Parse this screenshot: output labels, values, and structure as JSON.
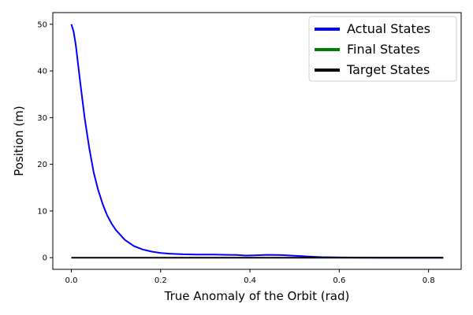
{
  "chart_data": {
    "type": "line",
    "title": "",
    "xlabel": "True Anomaly of the Orbit (rad)",
    "ylabel": "Position (m)",
    "xlim": [
      -0.0415,
      0.873
    ],
    "ylim": [
      -2.5,
      52.5
    ],
    "xticks": [
      0.0,
      0.2,
      0.4,
      0.6,
      0.8
    ],
    "xtick_labels": [
      "0.0",
      "0.2",
      "0.4",
      "0.6",
      "0.8"
    ],
    "yticks": [
      0,
      10,
      20,
      30,
      40,
      50
    ],
    "ytick_labels": [
      "0",
      "10",
      "20",
      "30",
      "40",
      "50"
    ],
    "grid": false,
    "legend_position": "top-right",
    "series": [
      {
        "name": "Actual States",
        "color": "#0000ff",
        "x": [
          0.0,
          0.005,
          0.01,
          0.015,
          0.02,
          0.03,
          0.04,
          0.05,
          0.06,
          0.07,
          0.08,
          0.09,
          0.1,
          0.12,
          0.14,
          0.16,
          0.18,
          0.2,
          0.22,
          0.25,
          0.28,
          0.32,
          0.35,
          0.37,
          0.39,
          0.41,
          0.44,
          0.47,
          0.5,
          0.53,
          0.56,
          0.6,
          0.65,
          0.7,
          0.75,
          0.8,
          0.833
        ],
        "y": [
          50.0,
          48.5,
          45.5,
          41.5,
          37.5,
          29.8,
          23.5,
          18.3,
          14.5,
          11.5,
          9.1,
          7.3,
          5.9,
          3.8,
          2.5,
          1.75,
          1.3,
          1.0,
          0.85,
          0.72,
          0.68,
          0.65,
          0.6,
          0.58,
          0.45,
          0.5,
          0.6,
          0.55,
          0.4,
          0.25,
          0.12,
          0.04,
          0.01,
          0.0,
          0.0,
          0.0,
          0.0
        ]
      },
      {
        "name": "Final States",
        "color": "#008000",
        "x": [],
        "y": []
      },
      {
        "name": "Target States",
        "color": "#000000",
        "x": [
          0.0,
          0.833
        ],
        "y": [
          0.0,
          0.0
        ]
      }
    ]
  }
}
